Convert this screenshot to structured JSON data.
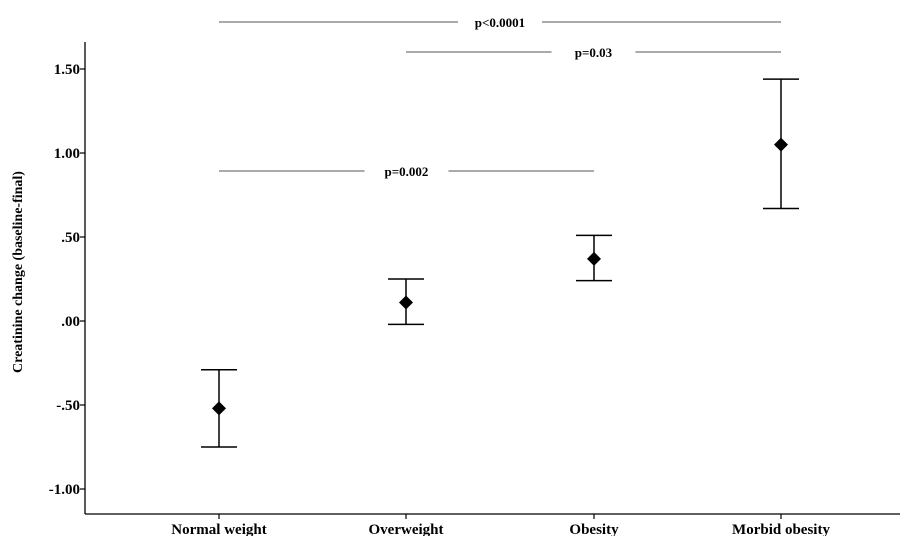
{
  "chart_data": {
    "type": "scatter",
    "title": "",
    "xlabel": "",
    "ylabel": "Creatinine change (baseline-final)",
    "ylim": [
      -1.1,
      1.65
    ],
    "yticks": [
      -1.0,
      -0.5,
      0.0,
      0.5,
      1.0,
      1.5
    ],
    "ytick_labels": [
      "-1.00",
      "-.50",
      ".00",
      ".50",
      "1.00",
      "1.50"
    ],
    "grid": false,
    "categories": [
      "Normal weight",
      "Overweight",
      "Obesity",
      "Morbid obesity"
    ],
    "series": [
      {
        "marker": "diamond",
        "mean": [
          -0.52,
          0.11,
          0.37,
          1.05
        ],
        "ci_low": [
          -0.75,
          -0.02,
          0.24,
          0.67
        ],
        "ci_high": [
          -0.29,
          0.25,
          0.51,
          1.44
        ]
      }
    ],
    "comparisons": [
      {
        "from": 0,
        "to": 3,
        "label": "p<0.0001",
        "level": 0
      },
      {
        "from": 1,
        "to": 3,
        "label": "p=0.03",
        "level": 1
      },
      {
        "from": 0,
        "to": 2,
        "label": "p=0.002",
        "level": 2
      }
    ],
    "colors": {
      "marks": "#000000",
      "axis": "#000000",
      "comparison_line": "#555555"
    }
  }
}
